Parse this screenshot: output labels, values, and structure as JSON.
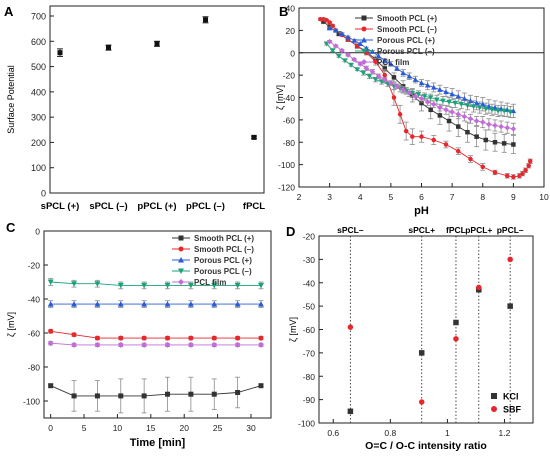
{
  "colors": {
    "smooth_pos": "#333333",
    "smooth_neg": "#e8262b",
    "porous_pos": "#2a5bd7",
    "porous_neg": "#1aa37a",
    "pcl_film": "#c36bd9",
    "surface_marker": "#111111",
    "errorbar": "#8a8a8a"
  },
  "chart_data": [
    {
      "panel_label": "A",
      "type": "scatter",
      "title": "",
      "xlabel": "",
      "ylabel": "Surface Potential",
      "categories": [
        "sPCL (+)",
        "sPCL (–)",
        "pPCL (+)",
        "pPCL (–)",
        "fPCL"
      ],
      "values": [
        555,
        575,
        590,
        685,
        220
      ],
      "errors": [
        15,
        10,
        10,
        12,
        5
      ],
      "ylim": [
        0,
        700
      ],
      "yticks": [
        0,
        100,
        200,
        300,
        400,
        500,
        600,
        700
      ],
      "grid": false
    },
    {
      "panel_label": "B",
      "type": "line",
      "xlabel": "pH",
      "ylabel": "ζ [mV]",
      "xlim": [
        2,
        10
      ],
      "ylim": [
        -120,
        40
      ],
      "xticks": [
        2,
        3,
        4,
        5,
        6,
        7,
        8,
        9,
        10
      ],
      "yticks": [
        -120,
        -100,
        -80,
        -60,
        -40,
        -20,
        0,
        20,
        40
      ],
      "legend_position": "top-right",
      "grid": false,
      "series": [
        {
          "name": "Smooth PCL (+)",
          "color_key": "smooth_pos",
          "marker": "square",
          "x": [
            2.8,
            3.0,
            3.3,
            3.6,
            3.9,
            4.2,
            4.5,
            4.8,
            5.1,
            5.4,
            5.7,
            6.0,
            6.3,
            6.6,
            6.9,
            7.2,
            7.5,
            7.8,
            8.1,
            8.4,
            8.7,
            9.0
          ],
          "y": [
            28,
            23,
            17,
            12,
            6,
            1,
            -6,
            -14,
            -22,
            -30,
            -38,
            -45,
            -51,
            -56,
            -61,
            -66,
            -71,
            -75,
            -78,
            -80,
            -81,
            -82
          ],
          "err": [
            2,
            2,
            2,
            2,
            2,
            2,
            3,
            3,
            4,
            5,
            6,
            7,
            8,
            8,
            9,
            9,
            9,
            9,
            9,
            8,
            8,
            8
          ]
        },
        {
          "name": "Smooth PCL (–)",
          "color_key": "smooth_neg",
          "marker": "circle",
          "x": [
            2.7,
            2.8,
            2.9,
            3.0,
            3.1,
            3.2,
            3.4,
            3.6,
            3.9,
            4.2,
            4.5,
            4.8,
            5.1,
            5.3,
            5.5,
            5.7,
            6.0,
            6.4,
            6.8,
            7.2,
            7.6,
            8.0,
            8.4,
            8.8,
            9.0,
            9.2,
            9.3,
            9.4,
            9.5,
            9.55
          ],
          "y": [
            30,
            30,
            29,
            27,
            24,
            20,
            16,
            12,
            6,
            0,
            -8,
            -20,
            -40,
            -55,
            -70,
            -75,
            -75,
            -78,
            -82,
            -88,
            -95,
            -102,
            -107,
            -110,
            -111,
            -110,
            -108,
            -105,
            -101,
            -97
          ],
          "err": [
            1,
            1,
            1,
            1,
            1,
            1,
            1,
            1,
            1,
            2,
            3,
            5,
            7,
            8,
            8,
            7,
            5,
            4,
            3,
            3,
            3,
            3,
            2,
            2,
            2,
            2,
            2,
            2,
            2,
            2
          ]
        },
        {
          "name": "Porous PCL (+)",
          "color_key": "porous_pos",
          "marker": "triangle-up",
          "x": [
            3.0,
            3.2,
            3.4,
            3.6,
            3.8,
            4.0,
            4.2,
            4.4,
            4.6,
            4.8,
            5.0,
            5.2,
            5.4,
            5.6,
            5.8,
            6.0,
            6.2,
            6.4,
            6.6,
            6.8,
            7.0,
            7.2,
            7.4,
            7.6,
            7.8,
            8.0,
            8.2,
            8.4,
            8.6,
            8.8,
            9.0
          ],
          "y": [
            22,
            20,
            17,
            14,
            11,
            8,
            4,
            1,
            -3,
            -7,
            -10,
            -14,
            -18,
            -21,
            -24,
            -27,
            -29,
            -31,
            -33,
            -35,
            -37,
            -39,
            -41,
            -43,
            -45,
            -46,
            -48,
            -49,
            -50,
            -51,
            -52
          ],
          "err": [
            1,
            1,
            1,
            1,
            1,
            1,
            1,
            1,
            2,
            2,
            2,
            2,
            3,
            3,
            3,
            3,
            4,
            4,
            4,
            4,
            5,
            5,
            5,
            5,
            6,
            6,
            6,
            6,
            6,
            6,
            6
          ]
        },
        {
          "name": "Porous PCL (–)",
          "color_key": "porous_neg",
          "marker": "triangle-down",
          "x": [
            2.9,
            3.1,
            3.3,
            3.5,
            3.7,
            3.9,
            4.1,
            4.3,
            4.5,
            4.7,
            4.9,
            5.1,
            5.3,
            5.5,
            5.7,
            5.9,
            6.1,
            6.3,
            6.5,
            6.7,
            6.9,
            7.1,
            7.3,
            7.5,
            7.7,
            7.9,
            8.1,
            8.3,
            8.5,
            8.7,
            8.9
          ],
          "y": [
            8,
            2,
            -3,
            -7,
            -11,
            -15,
            -18,
            -21,
            -24,
            -26,
            -28,
            -30,
            -32,
            -34,
            -36,
            -37,
            -39,
            -40,
            -42,
            -43,
            -44,
            -45,
            -46,
            -47,
            -48,
            -49,
            -50,
            -51,
            -52,
            -52,
            -53
          ],
          "err": [
            1,
            1,
            1,
            1,
            1,
            1,
            2,
            2,
            2,
            2,
            2,
            3,
            3,
            3,
            3,
            3,
            3,
            3,
            4,
            4,
            4,
            4,
            4,
            4,
            5,
            5,
            5,
            5,
            5,
            5,
            5
          ]
        },
        {
          "name": "PCL film",
          "color_key": "pcl_film",
          "marker": "diamond",
          "x": [
            3.0,
            3.2,
            3.4,
            3.6,
            3.8,
            4.0,
            4.2,
            4.4,
            4.6,
            4.8,
            5.0,
            5.2,
            5.4,
            5.6,
            5.8,
            6.0,
            6.2,
            6.4,
            6.6,
            6.8,
            7.0,
            7.2,
            7.4,
            7.6,
            7.8,
            8.0,
            8.2,
            8.4,
            8.6,
            8.8,
            9.0
          ],
          "y": [
            10,
            6,
            2,
            -2,
            -6,
            -10,
            -14,
            -17,
            -21,
            -24,
            -27,
            -30,
            -33,
            -36,
            -39,
            -41,
            -44,
            -46,
            -49,
            -51,
            -53,
            -55,
            -57,
            -59,
            -61,
            -62,
            -64,
            -65,
            -66,
            -67,
            -68
          ],
          "err": [
            1,
            1,
            1,
            1,
            1,
            1,
            2,
            2,
            2,
            2,
            2,
            2,
            3,
            3,
            3,
            3,
            3,
            3,
            3,
            4,
            4,
            4,
            4,
            4,
            4,
            5,
            5,
            5,
            5,
            5,
            5
          ]
        }
      ]
    },
    {
      "panel_label": "C",
      "type": "line",
      "xlabel": "Time [min]",
      "ylabel": "ζ [mV]",
      "xlim": [
        -1,
        33
      ],
      "ylim": [
        -110,
        0
      ],
      "xticks": [
        0,
        5,
        10,
        15,
        20,
        25,
        30
      ],
      "yticks": [
        -100,
        -80,
        -60,
        -40,
        -20,
        0
      ],
      "legend_position": "top-right",
      "grid": false,
      "series": [
        {
          "name": "Smooth PCL (+)",
          "color_key": "smooth_pos",
          "marker": "square",
          "x": [
            0,
            3.5,
            7,
            10.5,
            14,
            17.5,
            21,
            24.5,
            28,
            31.5
          ],
          "y": [
            -91,
            -97,
            -97,
            -97,
            -97,
            -96,
            -96,
            -96,
            -95,
            -91
          ],
          "err": [
            1,
            9,
            9,
            10,
            10,
            10,
            10,
            9,
            9,
            1
          ]
        },
        {
          "name": "Smooth PCL (–)",
          "color_key": "smooth_neg",
          "marker": "circle",
          "x": [
            0,
            3.5,
            7,
            10.5,
            14,
            17.5,
            21,
            24.5,
            28,
            31.5
          ],
          "y": [
            -59,
            -61,
            -63,
            -63,
            -63,
            -63,
            -63,
            -63,
            -63,
            -63
          ],
          "err": [
            1,
            1,
            1,
            1,
            1,
            1,
            1,
            1,
            1,
            1
          ]
        },
        {
          "name": "Porous PCL (+)",
          "color_key": "porous_pos",
          "marker": "triangle-up",
          "x": [
            0,
            3.5,
            7,
            10.5,
            14,
            17.5,
            21,
            24.5,
            28,
            31.5
          ],
          "y": [
            -43,
            -43,
            -43,
            -43,
            -43,
            -43,
            -43,
            -43,
            -43,
            -43
          ],
          "err": [
            2,
            2,
            2,
            2,
            2,
            2,
            2,
            2,
            2,
            2
          ]
        },
        {
          "name": "Porous PCL (–)",
          "color_key": "porous_neg",
          "marker": "triangle-down",
          "x": [
            0,
            3.5,
            7,
            10.5,
            14,
            17.5,
            21,
            24.5,
            28,
            31.5
          ],
          "y": [
            -30,
            -31,
            -31,
            -32,
            -32,
            -32,
            -32,
            -32,
            -32,
            -32
          ],
          "err": [
            2,
            2,
            2,
            2,
            2,
            2,
            2,
            2,
            2,
            2
          ]
        },
        {
          "name": "PCL film",
          "color_key": "pcl_film",
          "marker": "diamond",
          "x": [
            0,
            3.5,
            7,
            10.5,
            14,
            17.5,
            21,
            24.5,
            28,
            31.5
          ],
          "y": [
            -66,
            -67,
            -67,
            -67,
            -67,
            -67,
            -67,
            -67,
            -67,
            -67
          ],
          "err": [
            1,
            1,
            1,
            1,
            1,
            1,
            1,
            1,
            1,
            1
          ]
        }
      ]
    },
    {
      "panel_label": "D",
      "type": "scatter",
      "xlabel": "O=C / O-C intensity ratio",
      "ylabel": "ζ [mV]",
      "xlim": [
        0.55,
        1.3
      ],
      "ylim": [
        -100,
        -20
      ],
      "xticks": [
        0.6,
        0.8,
        1.0,
        1.2
      ],
      "yticks": [
        -100,
        -90,
        -80,
        -70,
        -60,
        -50,
        -40,
        -30,
        -20
      ],
      "legend_position": "bottom-right",
      "grid": false,
      "reference_lines": [
        {
          "x": 0.66,
          "label": "sPCL–"
        },
        {
          "x": 0.91,
          "label": "sPCL+"
        },
        {
          "x": 1.03,
          "label": "fPCL"
        },
        {
          "x": 1.11,
          "label": "pPCL+"
        },
        {
          "x": 1.22,
          "label": "pPCL–"
        }
      ],
      "series": [
        {
          "name": "KCl",
          "color_key": "smooth_pos",
          "marker": "square",
          "x": [
            0.66,
            0.91,
            1.03,
            1.11,
            1.22
          ],
          "y": [
            -95,
            -70,
            -57,
            -43,
            -50
          ]
        },
        {
          "name": "SBF",
          "color_key": "smooth_neg",
          "marker": "circle",
          "x": [
            0.66,
            0.91,
            1.03,
            1.11,
            1.22
          ],
          "y": [
            -59,
            -91,
            -64,
            -42,
            -30
          ]
        }
      ]
    }
  ]
}
